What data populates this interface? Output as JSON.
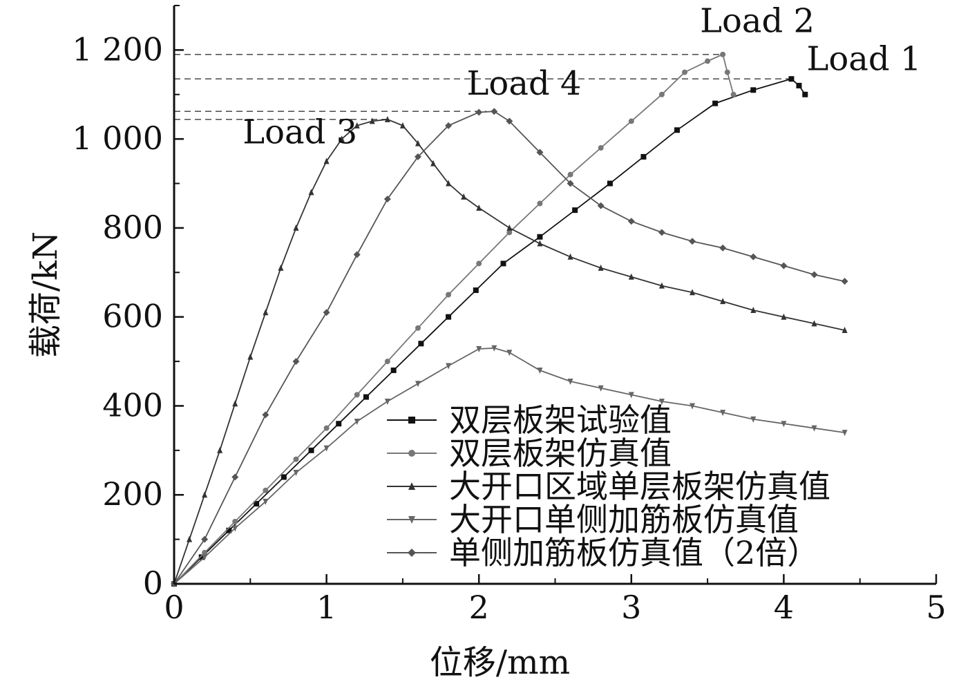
{
  "chart_data": {
    "type": "line",
    "xlabel": "位移/mm",
    "ylabel": "载荷/kN",
    "xlim": [
      0,
      5
    ],
    "ylim": [
      0,
      1300
    ],
    "xticks": [
      0,
      1,
      2,
      3,
      4,
      5
    ],
    "xtick_labels": [
      "0",
      "1",
      "2",
      "3",
      "4",
      "5"
    ],
    "yticks": [
      0,
      200,
      400,
      600,
      800,
      1000,
      1200
    ],
    "ytick_labels": [
      "0",
      "200",
      "400",
      "600",
      "800",
      "1 000",
      "1 200"
    ],
    "grid": false,
    "legend_position": "bottom-right",
    "series": [
      {
        "name": "双层板架试验值",
        "marker": "square",
        "color": "#111111",
        "points": [
          [
            0,
            0
          ],
          [
            0.18,
            60
          ],
          [
            0.36,
            120
          ],
          [
            0.54,
            180
          ],
          [
            0.72,
            240
          ],
          [
            0.9,
            300
          ],
          [
            1.08,
            360
          ],
          [
            1.26,
            420
          ],
          [
            1.44,
            480
          ],
          [
            1.62,
            540
          ],
          [
            1.8,
            600
          ],
          [
            1.98,
            660
          ],
          [
            2.16,
            720
          ],
          [
            2.4,
            780
          ],
          [
            2.63,
            840
          ],
          [
            2.86,
            900
          ],
          [
            3.08,
            960
          ],
          [
            3.3,
            1020
          ],
          [
            3.55,
            1080
          ],
          [
            3.8,
            1110
          ],
          [
            4.05,
            1135
          ],
          [
            4.1,
            1120
          ],
          [
            4.14,
            1100
          ]
        ]
      },
      {
        "name": "双层板架仿真值",
        "marker": "circle",
        "color": "#777777",
        "points": [
          [
            0,
            0
          ],
          [
            0.2,
            70
          ],
          [
            0.4,
            140
          ],
          [
            0.6,
            210
          ],
          [
            0.8,
            280
          ],
          [
            1.0,
            350
          ],
          [
            1.2,
            425
          ],
          [
            1.4,
            500
          ],
          [
            1.6,
            575
          ],
          [
            1.8,
            650
          ],
          [
            2.0,
            720
          ],
          [
            2.2,
            790
          ],
          [
            2.4,
            855
          ],
          [
            2.6,
            920
          ],
          [
            2.8,
            980
          ],
          [
            3.0,
            1040
          ],
          [
            3.2,
            1100
          ],
          [
            3.35,
            1150
          ],
          [
            3.5,
            1175
          ],
          [
            3.6,
            1190
          ],
          [
            3.63,
            1150
          ],
          [
            3.67,
            1100
          ]
        ]
      },
      {
        "name": "大开口区域单层板架仿真值",
        "marker": "triangle-up",
        "color": "#333333",
        "points": [
          [
            0,
            0
          ],
          [
            0.1,
            100
          ],
          [
            0.2,
            200
          ],
          [
            0.3,
            300
          ],
          [
            0.4,
            405
          ],
          [
            0.5,
            510
          ],
          [
            0.6,
            610
          ],
          [
            0.7,
            710
          ],
          [
            0.8,
            800
          ],
          [
            0.9,
            880
          ],
          [
            1.0,
            950
          ],
          [
            1.1,
            1000
          ],
          [
            1.2,
            1030
          ],
          [
            1.3,
            1040
          ],
          [
            1.4,
            1044
          ],
          [
            1.5,
            1030
          ],
          [
            1.6,
            990
          ],
          [
            1.7,
            945
          ],
          [
            1.8,
            900
          ],
          [
            1.9,
            870
          ],
          [
            2.0,
            845
          ],
          [
            2.2,
            800
          ],
          [
            2.4,
            765
          ],
          [
            2.6,
            735
          ],
          [
            2.8,
            710
          ],
          [
            3.0,
            690
          ],
          [
            3.2,
            670
          ],
          [
            3.4,
            655
          ],
          [
            3.6,
            635
          ],
          [
            3.8,
            615
          ],
          [
            4.0,
            600
          ],
          [
            4.2,
            585
          ],
          [
            4.4,
            570
          ]
        ]
      },
      {
        "name": "大开口单侧加筋板仿真值",
        "marker": "triangle-down",
        "color": "#666666",
        "points": [
          [
            0,
            0
          ],
          [
            0.2,
            60
          ],
          [
            0.4,
            125
          ],
          [
            0.6,
            185
          ],
          [
            0.8,
            250
          ],
          [
            1.0,
            305
          ],
          [
            1.2,
            365
          ],
          [
            1.4,
            410
          ],
          [
            1.6,
            450
          ],
          [
            1.8,
            490
          ],
          [
            2.0,
            528
          ],
          [
            2.1,
            530
          ],
          [
            2.2,
            520
          ],
          [
            2.4,
            480
          ],
          [
            2.6,
            455
          ],
          [
            2.8,
            440
          ],
          [
            3.0,
            425
          ],
          [
            3.2,
            410
          ],
          [
            3.4,
            400
          ],
          [
            3.6,
            385
          ],
          [
            3.8,
            370
          ],
          [
            4.0,
            360
          ],
          [
            4.2,
            350
          ],
          [
            4.4,
            340
          ]
        ]
      },
      {
        "name": "单侧加筋板仿真值（2倍）",
        "marker": "diamond",
        "color": "#555555",
        "points": [
          [
            0,
            0
          ],
          [
            0.2,
            100
          ],
          [
            0.4,
            240
          ],
          [
            0.6,
            380
          ],
          [
            0.8,
            500
          ],
          [
            1.0,
            610
          ],
          [
            1.2,
            740
          ],
          [
            1.4,
            865
          ],
          [
            1.6,
            960
          ],
          [
            1.8,
            1030
          ],
          [
            2.0,
            1060
          ],
          [
            2.1,
            1062
          ],
          [
            2.2,
            1040
          ],
          [
            2.4,
            970
          ],
          [
            2.6,
            900
          ],
          [
            2.8,
            850
          ],
          [
            3.0,
            815
          ],
          [
            3.2,
            790
          ],
          [
            3.4,
            770
          ],
          [
            3.6,
            755
          ],
          [
            3.8,
            735
          ],
          [
            4.0,
            715
          ],
          [
            4.2,
            695
          ],
          [
            4.4,
            680
          ]
        ]
      }
    ],
    "annotations": [
      {
        "text": "Load 1",
        "x": 4.05,
        "y": 1135,
        "text_x": 4.15,
        "text_y": 1155
      },
      {
        "text": "Load 2",
        "x": 3.6,
        "y": 1190,
        "text_x": 3.45,
        "text_y": 1240
      },
      {
        "text": "Load 3",
        "x": 1.42,
        "y": 1044,
        "text_x": 0.45,
        "text_y": 990
      },
      {
        "text": "Load 4",
        "x": 2.05,
        "y": 1062,
        "text_x": 1.92,
        "text_y": 1100
      }
    ],
    "reference_lines": [
      {
        "y": 1190,
        "x_end": 3.6
      },
      {
        "y": 1135,
        "x_end": 4.05
      },
      {
        "y": 1062,
        "x_end": 2.05
      },
      {
        "y": 1044,
        "x_end": 1.42
      }
    ]
  }
}
